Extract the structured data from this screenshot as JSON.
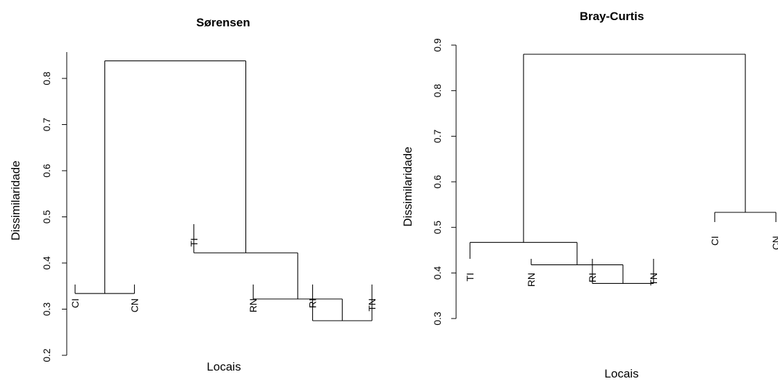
{
  "chart_data": [
    {
      "type": "dendrogram",
      "title": "Sørensen",
      "xlabel": "Locais",
      "ylabel": "Dissimilaridade",
      "ylim": [
        0.2,
        0.85
      ],
      "yticks": [
        "0.2",
        "0.3",
        "0.4",
        "0.5",
        "0.6",
        "0.7",
        "0.8"
      ],
      "leaves": [
        "CI",
        "CN",
        "TI",
        "RN",
        "RI",
        "TN"
      ],
      "merges": [
        {
          "left": "RI",
          "right": "TN",
          "height": 0.275
        },
        {
          "left": "RN",
          "right": "RI+TN",
          "height": 0.322
        },
        {
          "left": "CI",
          "right": "CN",
          "height": 0.334
        },
        {
          "left": "TI",
          "right": "RN+RI+TN",
          "height": 0.422
        },
        {
          "left": "CI+CN",
          "right": "TI+RN+RI+TN",
          "height": 0.838
        }
      ]
    },
    {
      "type": "dendrogram",
      "title": "Bray-Curtis",
      "xlabel": "Locais",
      "ylabel": "Dissimilaridade",
      "ylim": [
        0.3,
        0.9
      ],
      "yticks": [
        "0.3",
        "0.4",
        "0.5",
        "0.6",
        "0.7",
        "0.8",
        "0.9"
      ],
      "leaves": [
        "TI",
        "RN",
        "RI",
        "TN",
        "CI",
        "CN"
      ],
      "merges": [
        {
          "left": "RI",
          "right": "TN",
          "height": 0.377
        },
        {
          "left": "RN",
          "right": "RI+TN",
          "height": 0.418
        },
        {
          "left": "TI",
          "right": "RN+RI+TN",
          "height": 0.467
        },
        {
          "left": "CI",
          "right": "CN",
          "height": 0.533
        },
        {
          "left": "TI+RN+RI+TN",
          "right": "CI+CN",
          "height": 0.88
        }
      ]
    }
  ]
}
